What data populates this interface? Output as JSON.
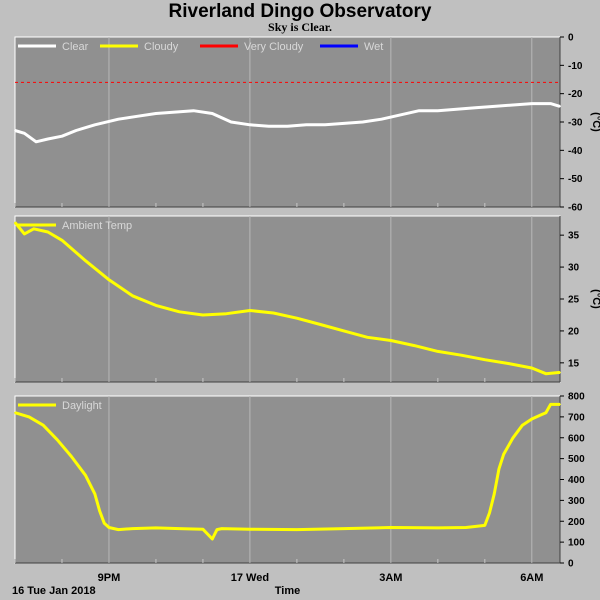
{
  "header": {
    "title": "Riverland Dingo Observatory",
    "subtitle": "Sky is Clear."
  },
  "chart_data": [
    {
      "type": "line",
      "name": "sky",
      "legend": [
        {
          "label": "Clear",
          "color": "#ffffff"
        },
        {
          "label": "Cloudy",
          "color": "#ffff00"
        },
        {
          "label": "Very Cloudy",
          "color": "#ff0000"
        },
        {
          "label": "Wet",
          "color": "#0000ff"
        }
      ],
      "ylim": [
        -60,
        0
      ],
      "yticks": [
        0,
        -10,
        -20,
        -30,
        -40,
        -50,
        -60
      ],
      "ylabel": "(°C)",
      "threshold": {
        "value": -16,
        "color": "#ff0000",
        "style": "dashed"
      },
      "series": [
        {
          "name": "Clear",
          "color": "#ffffff",
          "x": [
            0,
            0.2,
            0.45,
            0.7,
            1.0,
            1.3,
            1.7,
            2.2,
            2.6,
            3.0,
            3.4,
            3.8,
            4.2,
            4.6,
            5.0,
            5.4,
            5.8,
            6.2,
            6.6,
            7.0,
            7.4,
            7.8,
            8.2,
            8.6,
            9.0,
            9.4,
            9.8,
            10.2,
            10.6,
            11.0,
            11.4,
            11.6
          ],
          "values": [
            -33,
            -34,
            -37,
            -36,
            -35,
            -33,
            -31,
            -29,
            -28,
            -27,
            -26.5,
            -26,
            -27,
            -30,
            -31,
            -31.5,
            -31.5,
            -31,
            -31,
            -30.5,
            -30,
            -29,
            -27.5,
            -26,
            -26,
            -25.5,
            -25,
            -24.5,
            -24,
            -23.5,
            -23.5,
            -24.5
          ]
        }
      ]
    },
    {
      "type": "line",
      "name": "ambient",
      "legend": [
        {
          "label": "Ambient Temp",
          "color": "#ffff00"
        }
      ],
      "ylim": [
        12,
        38
      ],
      "yticks": [
        35,
        30,
        25,
        20,
        15
      ],
      "ylabel": "(°C)",
      "series": [
        {
          "name": "Ambient Temp",
          "color": "#ffff00",
          "x": [
            0,
            0.2,
            0.4,
            0.7,
            1.0,
            1.5,
            2.0,
            2.5,
            3.0,
            3.5,
            4.0,
            4.5,
            5.0,
            5.5,
            6.0,
            6.5,
            7.0,
            7.5,
            8.0,
            8.5,
            9.0,
            9.5,
            10.0,
            10.5,
            11.0,
            11.3,
            11.6
          ],
          "values": [
            37,
            35.2,
            36,
            35.5,
            34.2,
            31,
            28,
            25.5,
            24,
            23,
            22.5,
            22.7,
            23.2,
            22.8,
            22,
            21,
            20,
            19,
            18.5,
            17.7,
            16.8,
            16.2,
            15.5,
            14.9,
            14.2,
            13.3,
            13.5
          ]
        }
      ]
    },
    {
      "type": "line",
      "name": "daylight",
      "legend": [
        {
          "label": "Daylight",
          "color": "#ffff00"
        }
      ],
      "ylim": [
        0,
        800
      ],
      "yticks": [
        800,
        700,
        600,
        500,
        400,
        300,
        200,
        100,
        0
      ],
      "series": [
        {
          "name": "Daylight",
          "color": "#ffff00",
          "x": [
            0,
            0.3,
            0.6,
            0.9,
            1.2,
            1.5,
            1.7,
            1.8,
            1.9,
            2.0,
            2.2,
            2.5,
            3.0,
            3.5,
            4.0,
            4.2,
            4.3,
            4.4,
            5.0,
            6.0,
            7.0,
            8.0,
            9.0,
            9.6,
            10.0,
            10.1,
            10.2,
            10.3,
            10.4,
            10.6,
            10.8,
            11.0,
            11.2,
            11.3,
            11.4,
            11.6
          ],
          "values": [
            720,
            700,
            660,
            590,
            510,
            420,
            330,
            250,
            190,
            170,
            160,
            165,
            168,
            165,
            162,
            115,
            160,
            165,
            162,
            160,
            165,
            170,
            168,
            170,
            180,
            240,
            330,
            450,
            520,
            600,
            660,
            690,
            710,
            720,
            760,
            760
          ]
        }
      ]
    }
  ],
  "xaxis": {
    "xlim": [
      0,
      11.6
    ],
    "label": "Time",
    "ticks": [
      {
        "x": 2,
        "label": "9PM"
      },
      {
        "x": 5,
        "label": "17 Wed"
      },
      {
        "x": 8,
        "label": "3AM"
      },
      {
        "x": 11,
        "label": "6AM"
      }
    ],
    "start_label": "16 Tue Jan 2018"
  },
  "colors": {
    "background": "#c0c0c0",
    "plot_background": "#909090",
    "grid": "#b8b8b8"
  }
}
